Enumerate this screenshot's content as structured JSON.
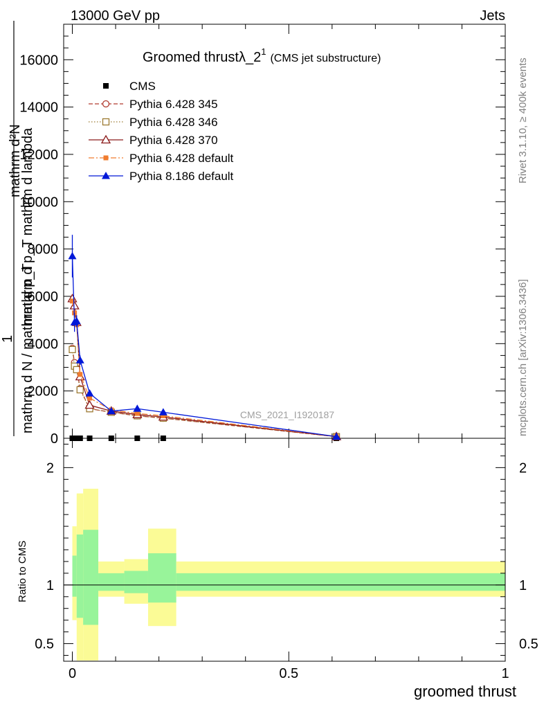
{
  "header": {
    "energy_label": "13000 GeV pp",
    "process_label": "Jets"
  },
  "side_labels": {
    "rivet": "Rivet 3.1.10, ≥ 400k events",
    "mcplots": "mcplots.cern.ch [arXiv:1306.3436]"
  },
  "chart_data": {
    "type": "line",
    "title_main": "Groomed thrustλ_2",
    "title_sup": "1",
    "title_extra": "(CMS jet substructure)",
    "watermark": "CMS_2021_I1920187",
    "xlabel": "groomed thrust",
    "ylabel_numerator": "mathrm d²N",
    "ylabel_numerator_2": "mathrm d p_T mathrm d lambda",
    "ylabel_numerator_3": "1",
    "ylabel_denominator": "mathrm d N / mathrm d p_T",
    "ratio_ylabel": "Ratio to CMS",
    "xlim": [
      -0.02,
      1.0
    ],
    "ylim": [
      0,
      17500
    ],
    "ratio_ylim": [
      0.35,
      2.25
    ],
    "x_ticks": [
      0,
      0.5,
      1
    ],
    "x_tick_labels": [
      "0",
      "0.5",
      "1"
    ],
    "y_ticks": [
      0,
      2000,
      4000,
      6000,
      8000,
      10000,
      12000,
      14000,
      16000
    ],
    "y_tick_labels": [
      "0",
      "2000",
      "4000",
      "6000",
      "8000",
      "10000",
      "12000",
      "14000",
      "16000"
    ],
    "ratio_ticks": [
      0.5,
      1,
      2
    ],
    "ratio_tick_labels": [
      "0.5",
      "1",
      "2"
    ],
    "x": [
      0.0,
      0.005,
      0.01,
      0.018,
      0.04,
      0.09,
      0.15,
      0.21,
      0.61
    ],
    "series": [
      {
        "name": "CMS",
        "style": "marker",
        "color": "#000000",
        "values": [
          0,
          0,
          0,
          0,
          0,
          0,
          0,
          0,
          0
        ]
      },
      {
        "name": "Pythia 6.428 345",
        "style": "dashed-circle",
        "color": "#b03a2e",
        "values": [
          3800,
          3200,
          2950,
          2100,
          1250,
          1100,
          950,
          850,
          70
        ]
      },
      {
        "name": "Pythia 6.428 346",
        "style": "dotted-square",
        "color": "#9c7a32",
        "values": [
          3750,
          3050,
          2900,
          2050,
          1250,
          1100,
          950,
          850,
          70
        ]
      },
      {
        "name": "Pythia 6.428 370",
        "style": "solid-triangle-open",
        "color": "#8b1a1a",
        "values": [
          5900,
          5600,
          4900,
          2600,
          1400,
          1150,
          1000,
          900,
          70
        ]
      },
      {
        "name": "Pythia 6.428 default",
        "style": "dashdot-square",
        "color": "#f07c2e",
        "values": [
          5800,
          5300,
          4800,
          2700,
          1700,
          1200,
          1050,
          950,
          80
        ]
      },
      {
        "name": "Pythia 8.186 default",
        "style": "solid-triangle",
        "color": "#0018d8",
        "values": [
          7700,
          4900,
          4950,
          3300,
          1900,
          1150,
          1250,
          1100,
          70
        ]
      }
    ],
    "p8_error_top": [
      8600,
      5300,
      5200,
      3500,
      2000,
      1250,
      1350,
      1150,
      100
    ],
    "ratio_bands": {
      "edges": [
        0.0,
        0.01,
        0.025,
        0.06,
        0.12,
        0.175,
        0.24,
        1.0
      ],
      "yellow_hi": [
        1.5,
        1.78,
        1.82,
        1.2,
        1.22,
        1.48,
        1.2
      ],
      "yellow_lo": [
        0.7,
        0.3,
        0.3,
        0.9,
        0.84,
        0.65,
        0.9
      ],
      "green_hi": [
        1.25,
        1.43,
        1.47,
        1.1,
        1.12,
        1.27,
        1.1
      ],
      "green_lo": [
        0.9,
        0.72,
        0.66,
        0.95,
        0.93,
        0.85,
        0.95
      ]
    },
    "band_colors": {
      "yellow": "#fbfb96",
      "green": "#98f49a"
    }
  }
}
